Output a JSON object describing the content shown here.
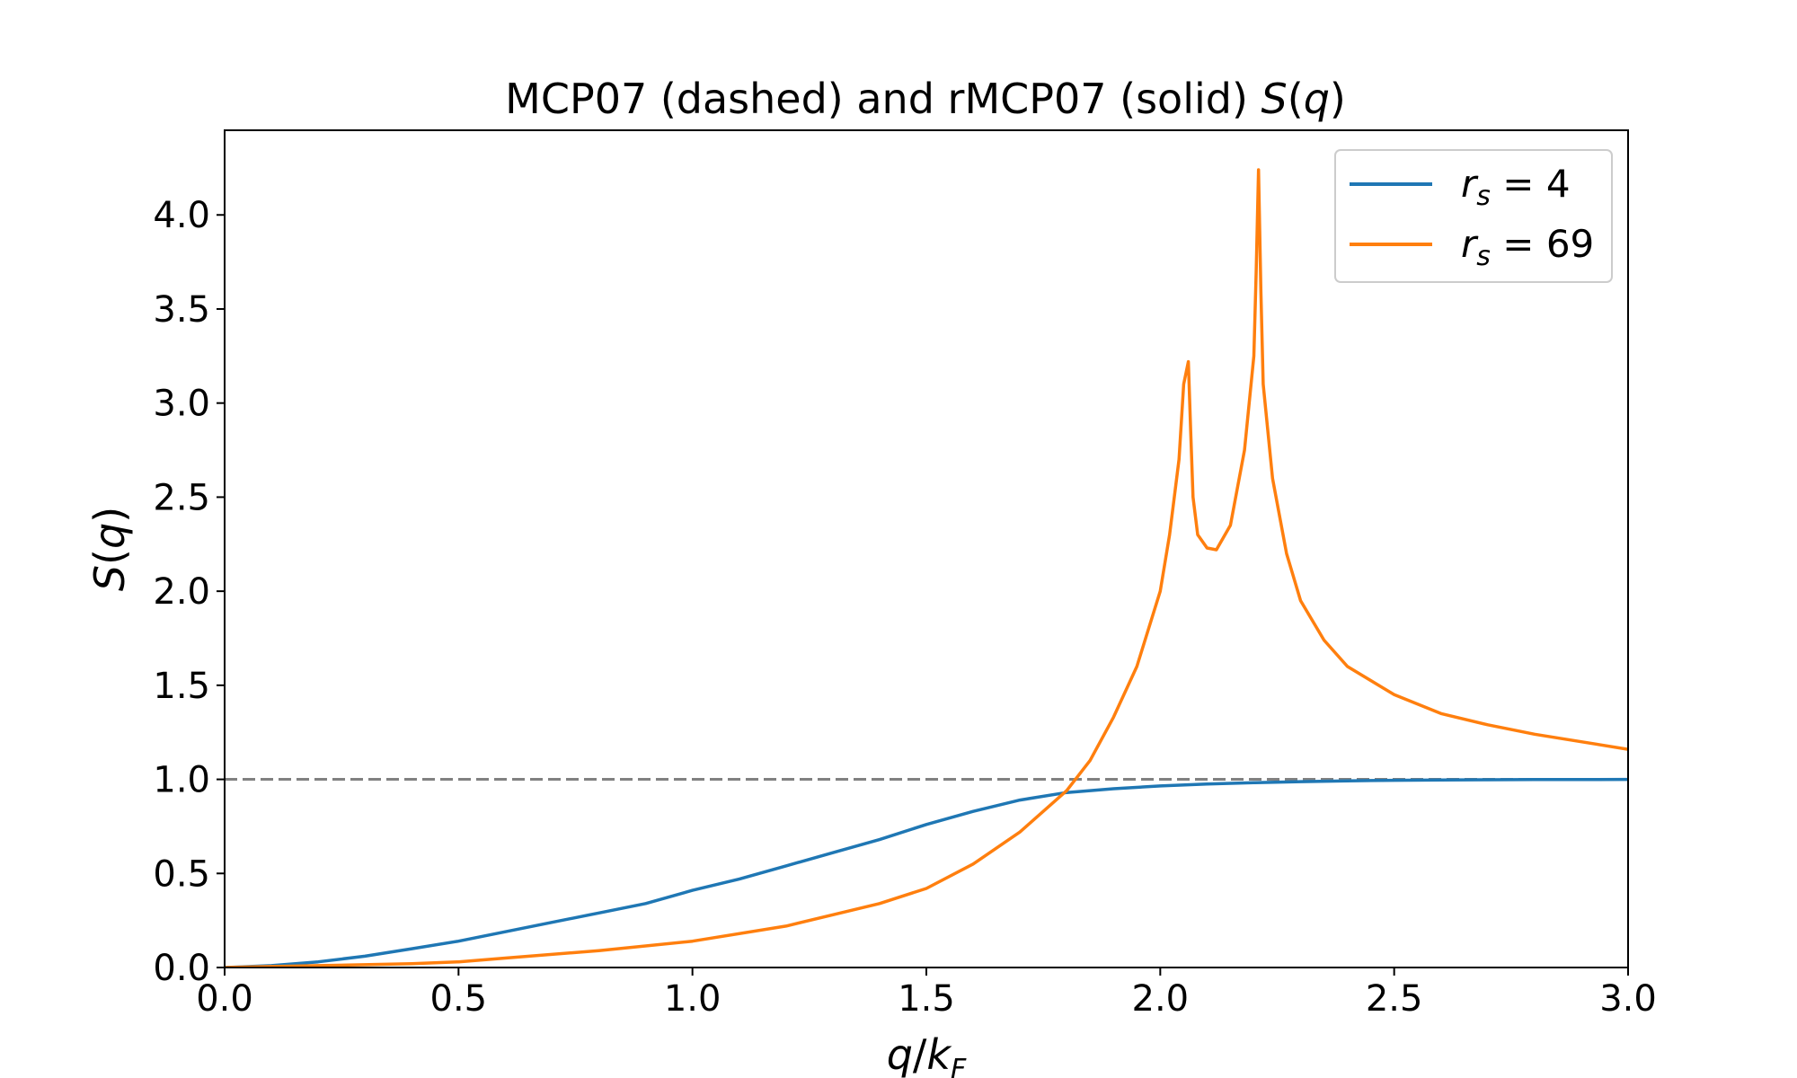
{
  "chart_data": {
    "type": "line",
    "title_prefix": "MCP07 (dashed) and rMCP07 (solid) ",
    "title_math": "S",
    "title_open": "(",
    "title_q": "q",
    "title_close": ")",
    "xlabel": {
      "q": "q",
      "slash": "/",
      "k": "k",
      "sub": "F"
    },
    "ylabel": {
      "S": "S",
      "open": "(",
      "q": "q",
      "close": ")"
    },
    "xlim": [
      0.0,
      3.0
    ],
    "ylim": [
      0.0,
      4.45
    ],
    "xticks": [
      0.0,
      0.5,
      1.0,
      1.5,
      2.0,
      2.5,
      3.0
    ],
    "xtick_labels": [
      "0.0",
      "0.5",
      "1.0",
      "1.5",
      "2.0",
      "2.5",
      "3.0"
    ],
    "yticks": [
      0.0,
      0.5,
      1.0,
      1.5,
      2.0,
      2.5,
      3.0,
      3.5,
      4.0
    ],
    "ytick_labels": [
      "0.0",
      "0.5",
      "1.0",
      "1.5",
      "2.0",
      "2.5",
      "3.0",
      "3.5",
      "4.0"
    ],
    "grid": false,
    "legend_position": "top-right",
    "reference_line": {
      "y": 1.0,
      "style": "dashed",
      "color": "#808080"
    },
    "series": [
      {
        "name": "r_s = 4",
        "legend_var": "r",
        "legend_sub": "s",
        "legend_eq": " = ",
        "legend_val": "4",
        "color": "#1f77b4",
        "x": [
          0.0,
          0.1,
          0.2,
          0.3,
          0.4,
          0.5,
          0.6,
          0.7,
          0.8,
          0.9,
          1.0,
          1.1,
          1.2,
          1.3,
          1.4,
          1.5,
          1.6,
          1.7,
          1.8,
          1.9,
          2.0,
          2.1,
          2.2,
          2.3,
          2.4,
          2.5,
          2.6,
          2.7,
          2.8,
          2.9,
          3.0
        ],
        "y": [
          0.0,
          0.01,
          0.03,
          0.06,
          0.1,
          0.14,
          0.19,
          0.24,
          0.29,
          0.34,
          0.41,
          0.47,
          0.54,
          0.61,
          0.68,
          0.76,
          0.83,
          0.89,
          0.93,
          0.95,
          0.965,
          0.975,
          0.982,
          0.988,
          0.992,
          0.995,
          0.997,
          0.998,
          0.999,
          0.999,
          1.0
        ]
      },
      {
        "name": "r_s = 69",
        "legend_var": "r",
        "legend_sub": "s",
        "legend_eq": " = ",
        "legend_val": "69",
        "color": "#ff7f0e",
        "x": [
          0.0,
          0.2,
          0.4,
          0.5,
          0.6,
          0.8,
          1.0,
          1.2,
          1.4,
          1.5,
          1.6,
          1.7,
          1.8,
          1.85,
          1.9,
          1.95,
          2.0,
          2.02,
          2.04,
          2.05,
          2.06,
          2.065,
          2.07,
          2.08,
          2.1,
          2.12,
          2.15,
          2.18,
          2.2,
          2.205,
          2.21,
          2.215,
          2.22,
          2.24,
          2.27,
          2.3,
          2.35,
          2.4,
          2.5,
          2.6,
          2.7,
          2.8,
          2.9,
          3.0
        ],
        "y": [
          0.0,
          0.01,
          0.02,
          0.03,
          0.05,
          0.09,
          0.14,
          0.22,
          0.34,
          0.42,
          0.55,
          0.72,
          0.94,
          1.1,
          1.33,
          1.6,
          2.0,
          2.3,
          2.7,
          3.1,
          3.22,
          2.85,
          2.5,
          2.3,
          2.23,
          2.22,
          2.35,
          2.75,
          3.25,
          3.7,
          4.24,
          3.6,
          3.1,
          2.6,
          2.2,
          1.95,
          1.74,
          1.6,
          1.45,
          1.35,
          1.29,
          1.24,
          1.2,
          1.16
        ]
      }
    ]
  }
}
